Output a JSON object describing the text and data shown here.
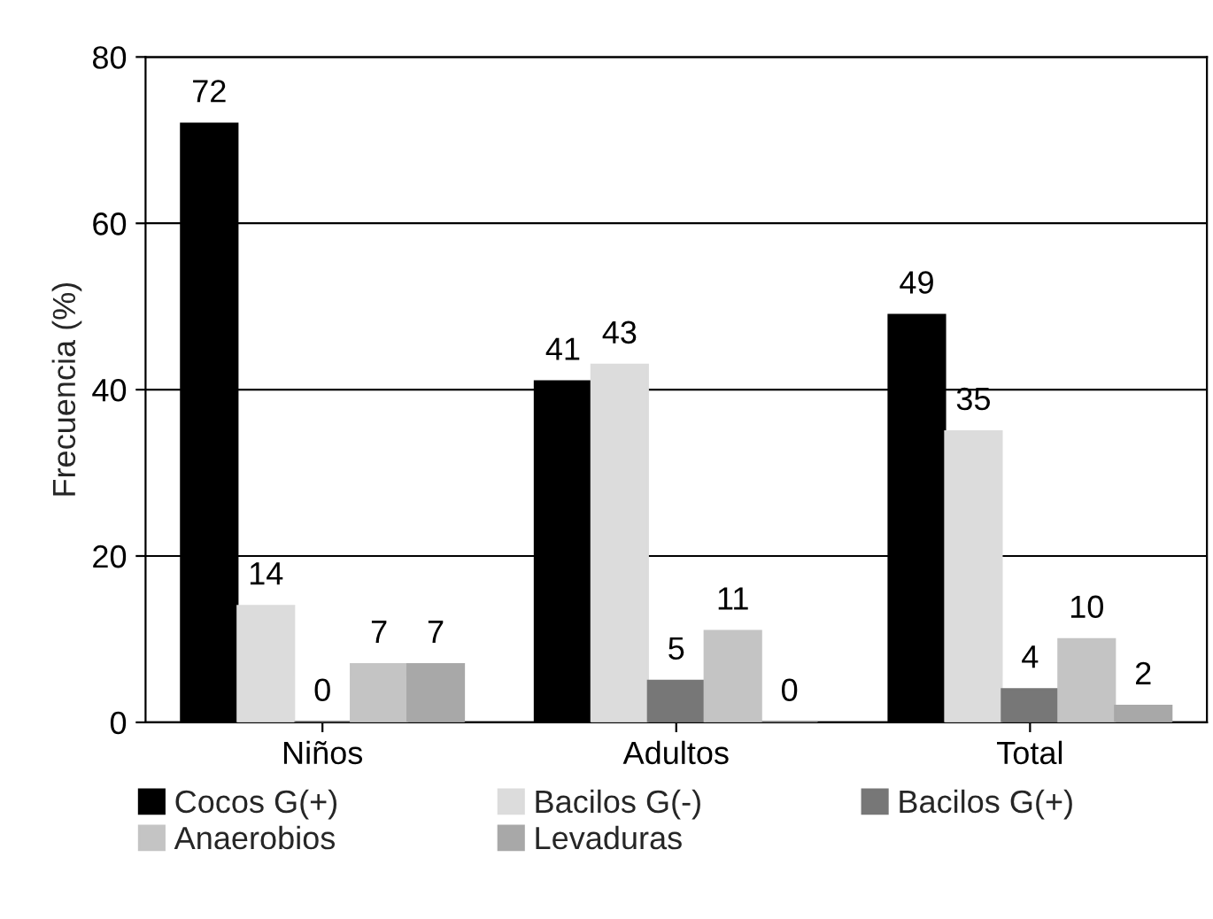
{
  "chart_data": {
    "type": "bar",
    "ylabel": "Frecuencia (%)",
    "categories": [
      "Niños",
      "Adultos",
      "Total"
    ],
    "series": [
      {
        "name": "Cocos G(+)",
        "color": "#000000",
        "values": [
          72,
          41,
          49
        ]
      },
      {
        "name": "Bacilos G(-)",
        "color": "#dcdcdc",
        "values": [
          14,
          43,
          35
        ]
      },
      {
        "name": "Bacilos G(+)",
        "color": "#777777",
        "values": [
          0,
          5,
          4
        ]
      },
      {
        "name": "Anaerobios",
        "color": "#c4c4c4",
        "values": [
          7,
          11,
          10
        ]
      },
      {
        "name": "Levaduras",
        "color": "#a8a8a8",
        "values": [
          7,
          0,
          2
        ]
      }
    ],
    "ylim": [
      0,
      80
    ],
    "yticks": [
      0,
      20,
      40,
      60,
      80
    ],
    "grid": "y",
    "legend": "bottom",
    "data_labels": true
  }
}
